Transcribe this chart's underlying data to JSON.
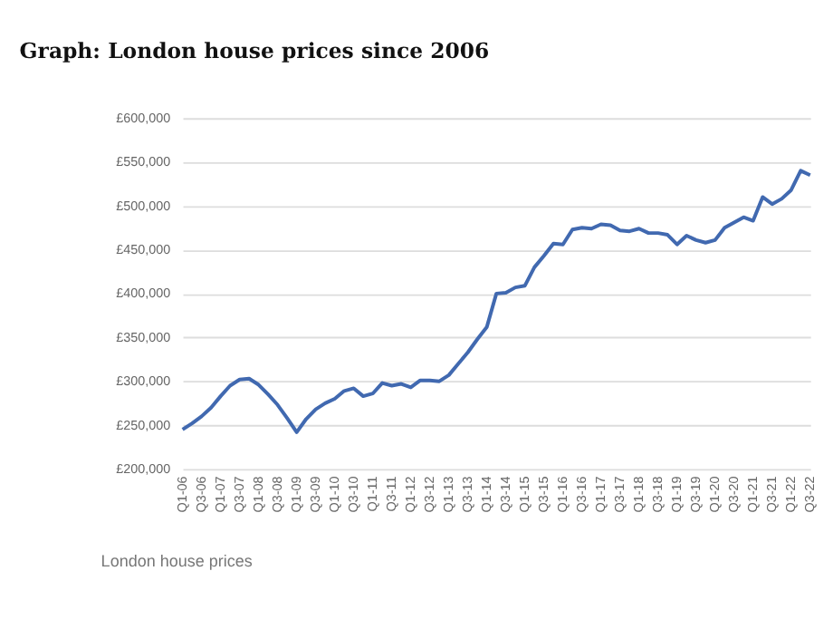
{
  "chart_data": {
    "type": "line",
    "title": "Graph: London house prices since 2006",
    "categories": [
      "Q1-06",
      null,
      "Q3-06",
      null,
      "Q1-07",
      null,
      "Q3-07",
      null,
      "Q1-08",
      null,
      "Q3-08",
      null,
      "Q1-09",
      null,
      "Q3-09",
      null,
      "Q1-10",
      null,
      "Q3-10",
      null,
      "Q1-11",
      null,
      "Q3-11",
      null,
      "Q1-12",
      null,
      "Q3-12",
      null,
      "Q1-13",
      null,
      "Q3-13",
      null,
      "Q1-14",
      null,
      "Q3-14",
      null,
      "Q1-15",
      null,
      "Q3-15",
      null,
      "Q1-16",
      null,
      "Q3-16",
      null,
      "Q1-17",
      null,
      "Q3-17",
      null,
      "Q1-18",
      null,
      "Q3-18",
      null,
      "Q1-19",
      null,
      "Q3-19",
      null,
      "Q1-20",
      null,
      "Q3-20",
      null,
      "Q1-21",
      null,
      "Q3-21",
      null,
      "Q1-22",
      null,
      "Q3-22"
    ],
    "series": [
      {
        "color": "#4169b0",
        "values": [
          245000,
          252000,
          260000,
          270000,
          283000,
          295000,
          302000,
          303000,
          296000,
          285000,
          273000,
          258000,
          242000,
          257000,
          268000,
          275000,
          280000,
          289000,
          292000,
          283000,
          286000,
          298000,
          295000,
          297000,
          293000,
          301000,
          301000,
          300000,
          307000,
          320000,
          333000,
          348000,
          362000,
          400000,
          401000,
          407000,
          409000,
          430000,
          443000,
          457000,
          456000,
          473000,
          475000,
          474000,
          479000,
          478000,
          472000,
          471000,
          474000,
          469000,
          469000,
          467000,
          456000,
          466000,
          461000,
          458000,
          461000,
          475000,
          481000,
          487000,
          483000,
          510000,
          502000,
          508000,
          518000,
          540000,
          535000
        ]
      }
    ],
    "ylim": [
      200000,
      600000
    ],
    "yticks": [
      {
        "value": 200000,
        "label": "£200,000"
      },
      {
        "value": 250000,
        "label": "£250,000"
      },
      {
        "value": 300000,
        "label": "£300,000"
      },
      {
        "value": 350000,
        "label": "£350,000"
      },
      {
        "value": 400000,
        "label": "£400,000"
      },
      {
        "value": 450000,
        "label": "£450,000"
      },
      {
        "value": 500000,
        "label": "£500,000"
      },
      {
        "value": 550000,
        "label": "£550,000"
      },
      {
        "value": 600000,
        "label": "£600,000"
      }
    ],
    "grid": "y",
    "marker": "none",
    "line_style": "solid",
    "annotations": [
      "London house prices"
    ]
  }
}
